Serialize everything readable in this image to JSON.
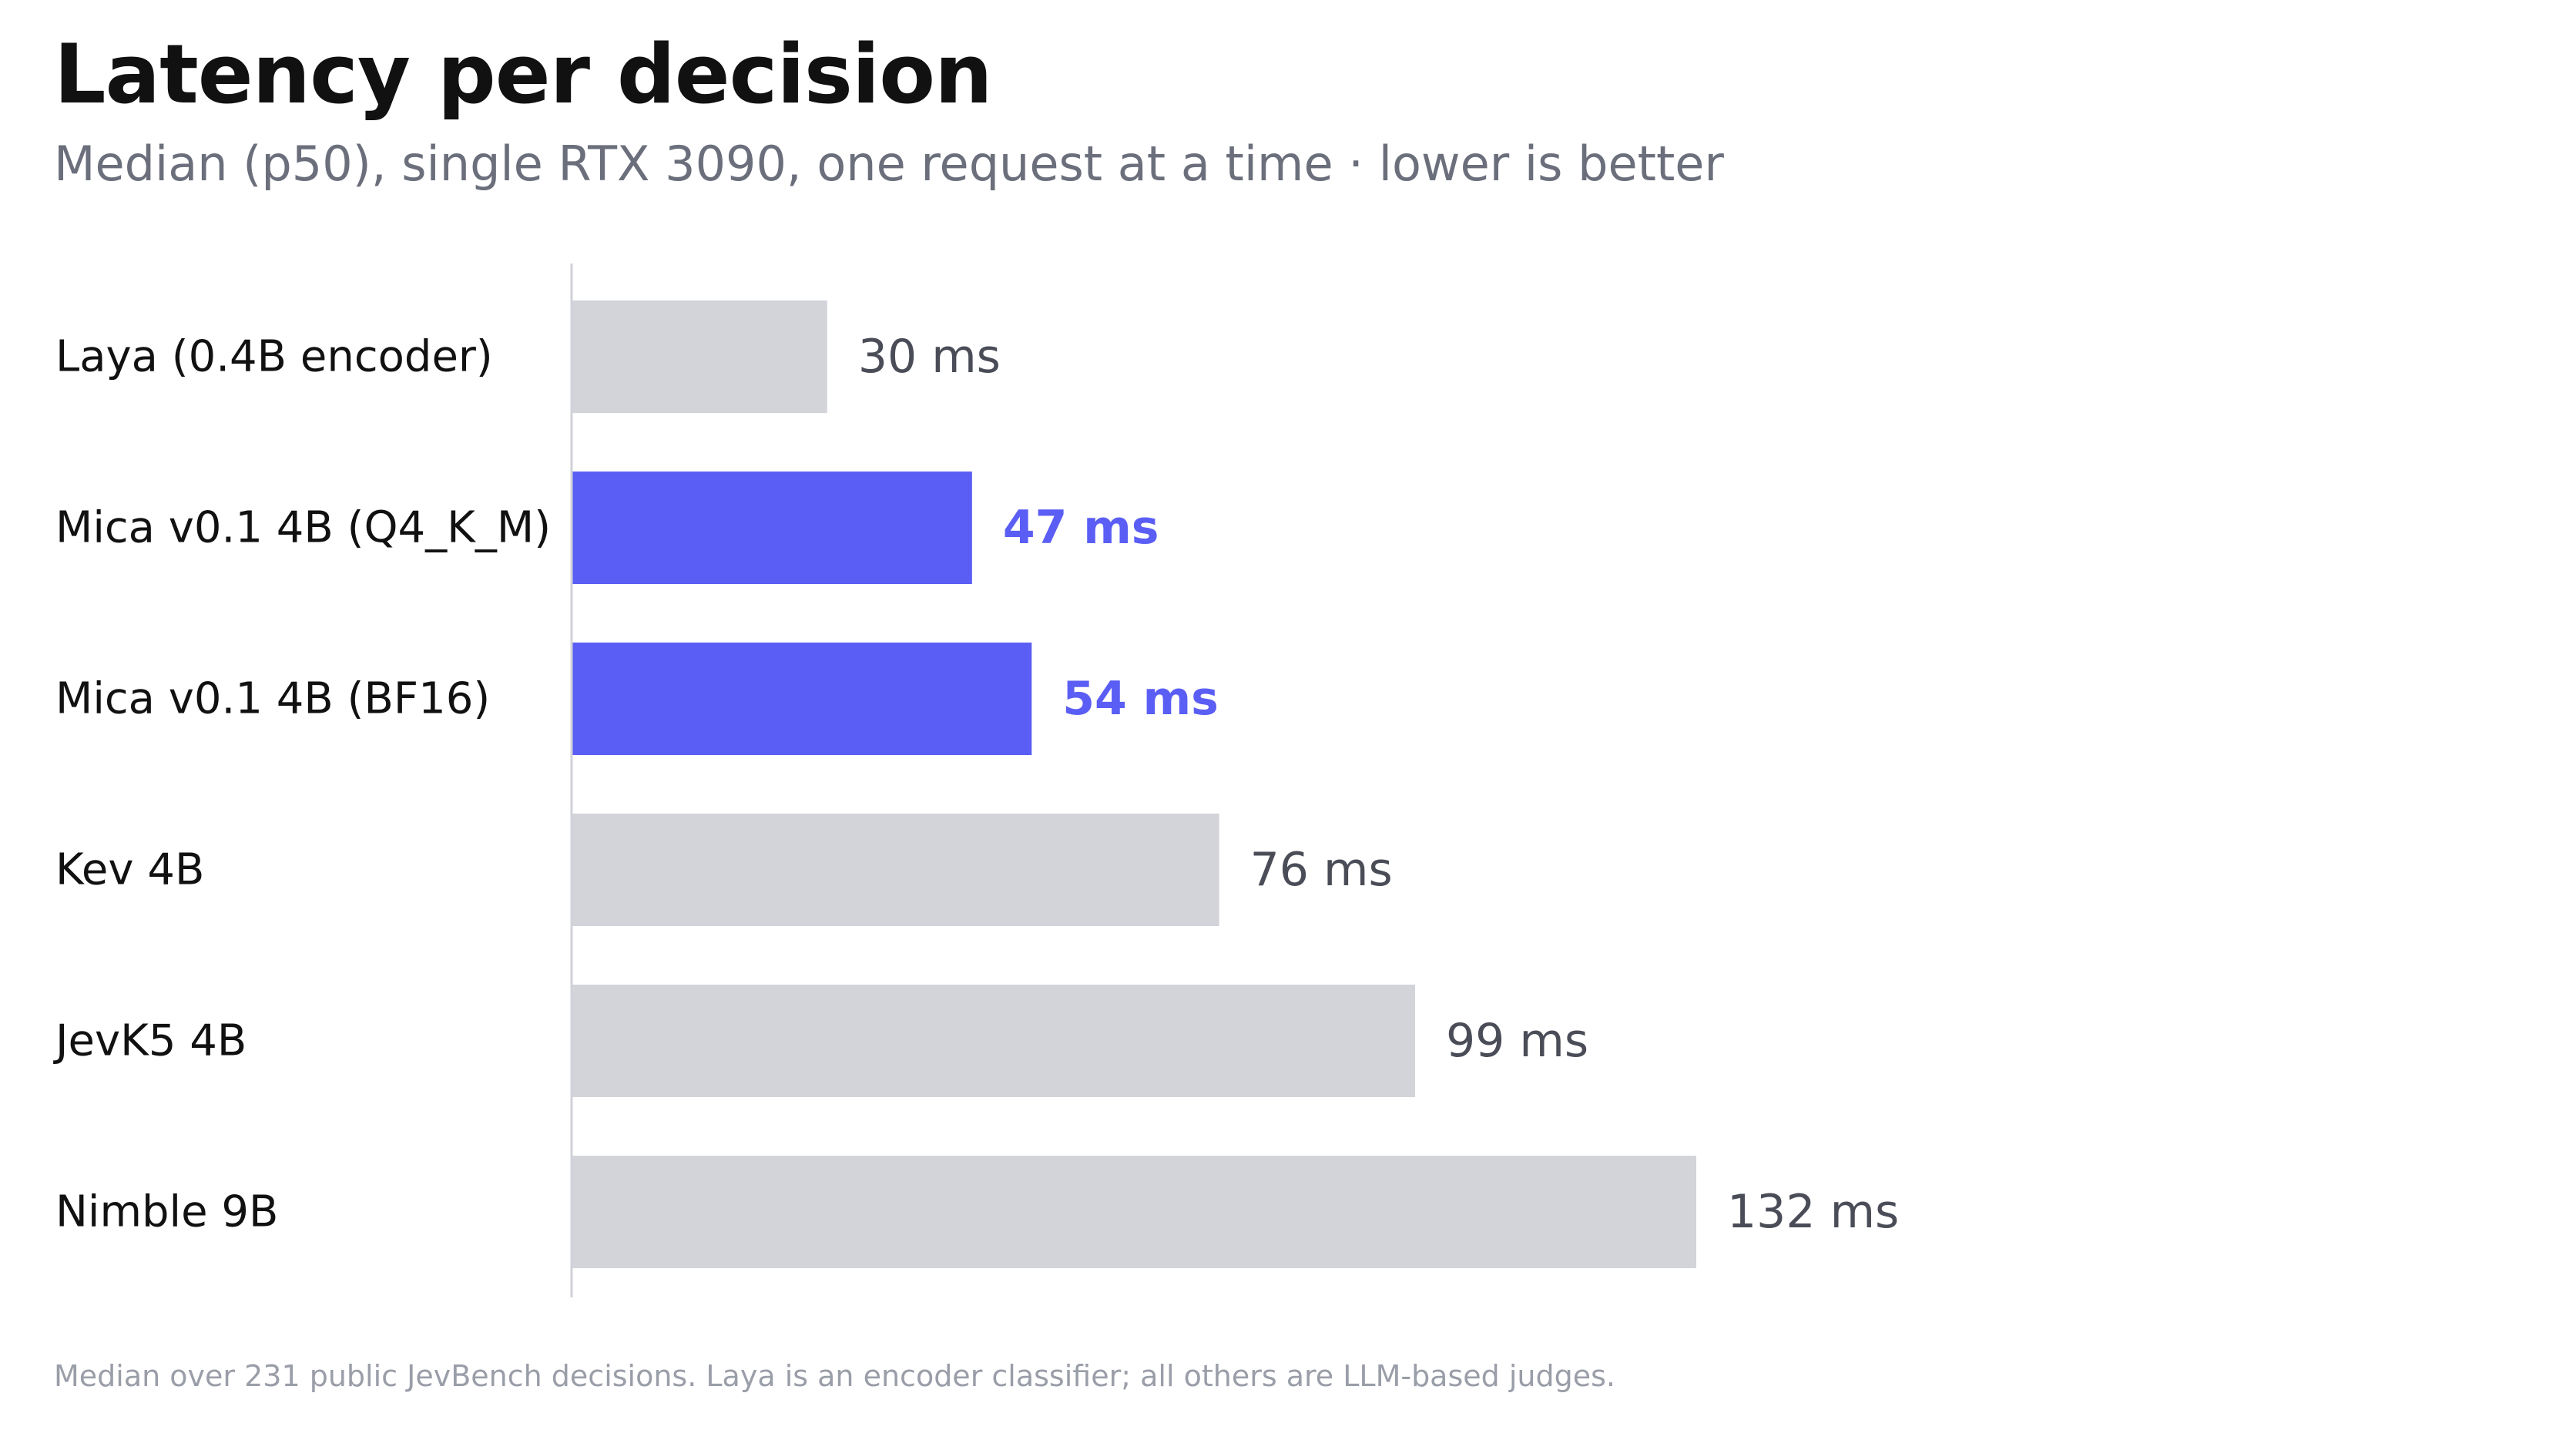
{
  "chart_data": {
    "type": "bar",
    "orientation": "horizontal",
    "title": "Latency per decision",
    "subtitle": "Median (p50), single RTX 3090, one request at a time · lower is better",
    "footnote": "Median over 231 public JevBench decisions. Laya is an encoder classifier; all others are LLM-based judges.",
    "unit": "ms",
    "xlim": [
      0,
      200
    ],
    "grid": false,
    "legend": "none",
    "colors": {
      "default": "#d3d4d9",
      "highlight": "#5b5ef4",
      "axis": "#d0d2d8"
    },
    "categories": [
      "Laya (0.4B encoder)",
      "Mica v0.1 4B (Q4_K_M)",
      "Mica v0.1 4B (BF16)",
      "Kev 4B",
      "JevK5 4B",
      "Nimble 9B"
    ],
    "values": [
      30,
      47,
      54,
      76,
      99,
      132
    ],
    "value_labels": [
      "30 ms",
      "47 ms",
      "54 ms",
      "76 ms",
      "99 ms",
      "132 ms"
    ],
    "highlighted": [
      false,
      true,
      true,
      false,
      false,
      false
    ]
  }
}
